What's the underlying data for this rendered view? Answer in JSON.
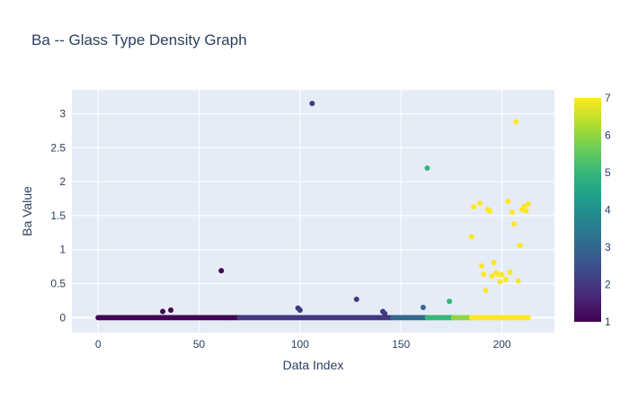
{
  "chart_data": {
    "type": "scatter",
    "title": "Ba -- Glass Type Density Graph",
    "xlabel": "Data Index",
    "ylabel": "Ba Value",
    "xlim": [
      -13,
      226
    ],
    "ylim": [
      -0.22,
      3.35
    ],
    "x_ticks": [
      0,
      50,
      100,
      150,
      200
    ],
    "y_ticks": [
      0,
      0.5,
      1,
      1.5,
      2,
      2.5,
      3
    ],
    "y_tick_labels": [
      "0",
      "0.5",
      "1",
      "1.5",
      "2",
      "2.5",
      "3"
    ],
    "grid": true,
    "plot_background": "#e5ecf6",
    "colorscale": "Viridis",
    "colorbar": {
      "title": "",
      "range": [
        1,
        7
      ],
      "ticks": [
        1,
        2,
        3,
        4,
        5,
        6,
        7
      ],
      "placement": "right"
    },
    "zero_segments": [
      {
        "from": 0,
        "to": 69,
        "type": 1
      },
      {
        "from": 70,
        "to": 145,
        "type": 2
      },
      {
        "from": 146,
        "to": 162,
        "type": 3
      },
      {
        "from": 163,
        "to": 175,
        "type": 5
      },
      {
        "from": 176,
        "to": 184,
        "type": 6
      },
      {
        "from": 185,
        "to": 213,
        "type": 7
      }
    ],
    "points": [
      {
        "x": 32,
        "y": 0.09,
        "type": 1
      },
      {
        "x": 36,
        "y": 0.11,
        "type": 1
      },
      {
        "x": 61,
        "y": 0.69,
        "type": 1
      },
      {
        "x": 99,
        "y": 0.14,
        "type": 2
      },
      {
        "x": 100,
        "y": 0.11,
        "type": 2
      },
      {
        "x": 106,
        "y": 3.15,
        "type": 2
      },
      {
        "x": 128,
        "y": 0.27,
        "type": 2
      },
      {
        "x": 141,
        "y": 0.09,
        "type": 2
      },
      {
        "x": 142,
        "y": 0.06,
        "type": 2
      },
      {
        "x": 161,
        "y": 0.15,
        "type": 3
      },
      {
        "x": 163,
        "y": 2.2,
        "type": 5
      },
      {
        "x": 174,
        "y": 0.24,
        "type": 5
      },
      {
        "x": 185,
        "y": 1.19,
        "type": 7
      },
      {
        "x": 186,
        "y": 1.63,
        "type": 7
      },
      {
        "x": 189,
        "y": 1.68,
        "type": 7
      },
      {
        "x": 190,
        "y": 0.76,
        "type": 7
      },
      {
        "x": 191,
        "y": 0.64,
        "type": 7
      },
      {
        "x": 192,
        "y": 0.4,
        "type": 7
      },
      {
        "x": 193,
        "y": 1.59,
        "type": 7
      },
      {
        "x": 194,
        "y": 1.57,
        "type": 7
      },
      {
        "x": 195,
        "y": 0.61,
        "type": 7
      },
      {
        "x": 196,
        "y": 0.81,
        "type": 7
      },
      {
        "x": 197,
        "y": 0.66,
        "type": 7
      },
      {
        "x": 198,
        "y": 0.64,
        "type": 7
      },
      {
        "x": 199,
        "y": 0.53,
        "type": 7
      },
      {
        "x": 200,
        "y": 0.63,
        "type": 7
      },
      {
        "x": 201,
        "y": 0.0,
        "type": 7
      },
      {
        "x": 202,
        "y": 0.56,
        "type": 7
      },
      {
        "x": 203,
        "y": 1.71,
        "type": 7
      },
      {
        "x": 204,
        "y": 0.67,
        "type": 7
      },
      {
        "x": 205,
        "y": 1.55,
        "type": 7
      },
      {
        "x": 206,
        "y": 1.38,
        "type": 7
      },
      {
        "x": 207,
        "y": 2.88,
        "type": 7
      },
      {
        "x": 208,
        "y": 0.54,
        "type": 7
      },
      {
        "x": 209,
        "y": 1.06,
        "type": 7
      },
      {
        "x": 210,
        "y": 1.59,
        "type": 7
      },
      {
        "x": 211,
        "y": 1.64,
        "type": 7
      },
      {
        "x": 212,
        "y": 1.57,
        "type": 7
      },
      {
        "x": 213,
        "y": 1.67,
        "type": 7
      }
    ]
  }
}
